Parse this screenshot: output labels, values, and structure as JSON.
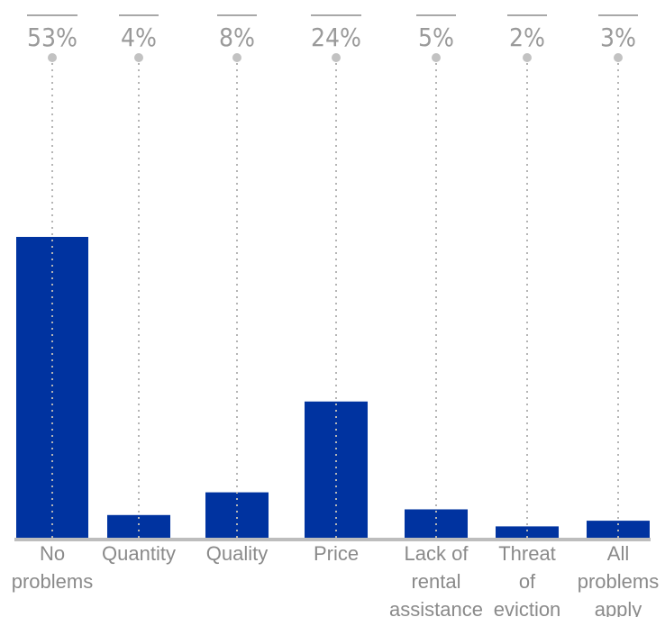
{
  "chart_data": {
    "type": "bar",
    "categories": [
      [
        "No",
        "problems"
      ],
      [
        "Quantity"
      ],
      [
        "Quality"
      ],
      [
        "Price"
      ],
      [
        "Lack of",
        "rental",
        "assistance"
      ],
      [
        "Threat",
        "of",
        "eviction"
      ],
      [
        "All",
        "problems",
        "apply"
      ]
    ],
    "values": [
      53,
      4,
      8,
      24,
      5,
      2,
      3
    ],
    "value_labels": [
      "53%",
      "4%",
      "8%",
      "24%",
      "5%",
      "2%",
      "3%"
    ],
    "title": "",
    "xlabel": "",
    "ylabel": "",
    "ylim": [
      0,
      53
    ],
    "grid": false,
    "colors": {
      "bar": "#0033a0",
      "axis": "#bdbdbd",
      "guide": "#b5b5b5",
      "label": "#8a8a8a"
    }
  }
}
